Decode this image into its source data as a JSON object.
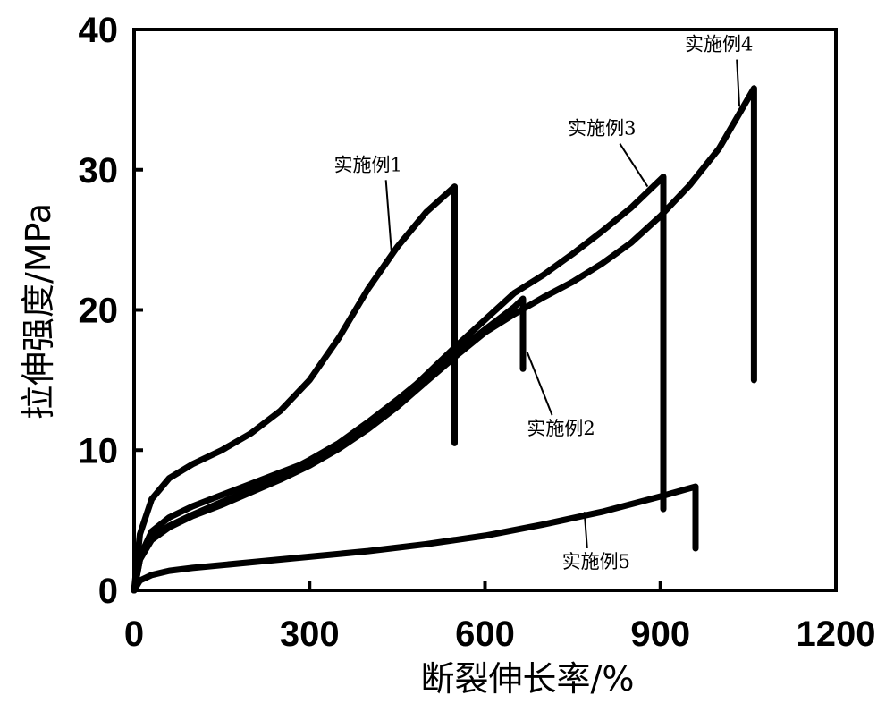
{
  "chart_data": {
    "type": "line",
    "title": "",
    "xlabel": "断裂伸长率/%",
    "ylabel": "拉伸强度/MPa",
    "xlim": [
      0,
      1200
    ],
    "ylim": [
      0,
      40
    ],
    "xticks": [
      "0",
      "300",
      "600",
      "900",
      "1200"
    ],
    "yticks": [
      "0",
      "10",
      "20",
      "30",
      "40"
    ],
    "grid": false,
    "series": [
      {
        "name": "实施例1",
        "x": [
          0,
          10,
          30,
          60,
          100,
          150,
          200,
          250,
          300,
          350,
          400,
          450,
          500,
          548,
          548
        ],
        "y": [
          0,
          4,
          6.5,
          8,
          9,
          10,
          11.2,
          12.8,
          15,
          18,
          21.5,
          24.5,
          27,
          28.8,
          10.5
        ]
      },
      {
        "name": "实施例2",
        "x": [
          0,
          10,
          30,
          60,
          100,
          150,
          200,
          250,
          300,
          350,
          400,
          450,
          500,
          550,
          600,
          650,
          665,
          665
        ],
        "y": [
          0,
          2.2,
          3.8,
          4.6,
          5.4,
          6.3,
          7.2,
          8.2,
          9.3,
          10.5,
          12,
          13.6,
          15.3,
          17,
          18.6,
          20.2,
          20.8,
          15.8
        ]
      },
      {
        "name": "实施例3",
        "x": [
          0,
          10,
          30,
          60,
          100,
          150,
          200,
          250,
          300,
          350,
          400,
          450,
          500,
          550,
          600,
          650,
          700,
          750,
          800,
          850,
          905,
          905
        ],
        "y": [
          0,
          2.4,
          4.2,
          5.2,
          6,
          6.8,
          7.6,
          8.4,
          9.2,
          10.3,
          11.8,
          13.4,
          15.4,
          17.4,
          19.3,
          21.2,
          22.5,
          24,
          25.6,
          27.3,
          29.5,
          5.8
        ]
      },
      {
        "name": "实施例4",
        "x": [
          0,
          10,
          30,
          60,
          100,
          150,
          200,
          250,
          300,
          350,
          400,
          450,
          500,
          550,
          600,
          650,
          700,
          750,
          800,
          850,
          900,
          950,
          1000,
          1060,
          1060
        ],
        "y": [
          0,
          2.2,
          3.6,
          4.5,
          5.3,
          6.1,
          7,
          7.9,
          8.9,
          10.1,
          11.5,
          13.1,
          14.9,
          16.7,
          18.4,
          19.7,
          20.9,
          22,
          23.3,
          24.8,
          26.7,
          28.9,
          31.5,
          35.8,
          15
        ]
      },
      {
        "name": "实施例5",
        "x": [
          0,
          10,
          30,
          60,
          100,
          200,
          300,
          400,
          500,
          600,
          700,
          800,
          900,
          960,
          960
        ],
        "y": [
          0,
          0.7,
          1.1,
          1.4,
          1.6,
          2,
          2.4,
          2.8,
          3.3,
          3.9,
          4.7,
          5.6,
          6.7,
          7.4,
          3
        ]
      }
    ],
    "annotations": [
      {
        "text": "实施例1",
        "series": "实施例1",
        "label_x": 400,
        "label_y": 29.9,
        "point_x": 440,
        "point_y": 24.2
      },
      {
        "text": "实施例2",
        "series": "实施例2",
        "label_x": 730,
        "label_y": 11.1,
        "point_x": 672,
        "point_y": 17
      },
      {
        "text": "实施例3",
        "series": "实施例3",
        "label_x": 800,
        "label_y": 32.5,
        "point_x": 878,
        "point_y": 28.8
      },
      {
        "text": "实施例4",
        "series": "实施例4",
        "label_x": 1000,
        "label_y": 38.5,
        "point_x": 1035,
        "point_y": 34.5
      },
      {
        "text": "实施例5",
        "series": "实施例5",
        "label_x": 790,
        "label_y": 1.6,
        "point_x": 770,
        "point_y": 5.6
      }
    ]
  }
}
